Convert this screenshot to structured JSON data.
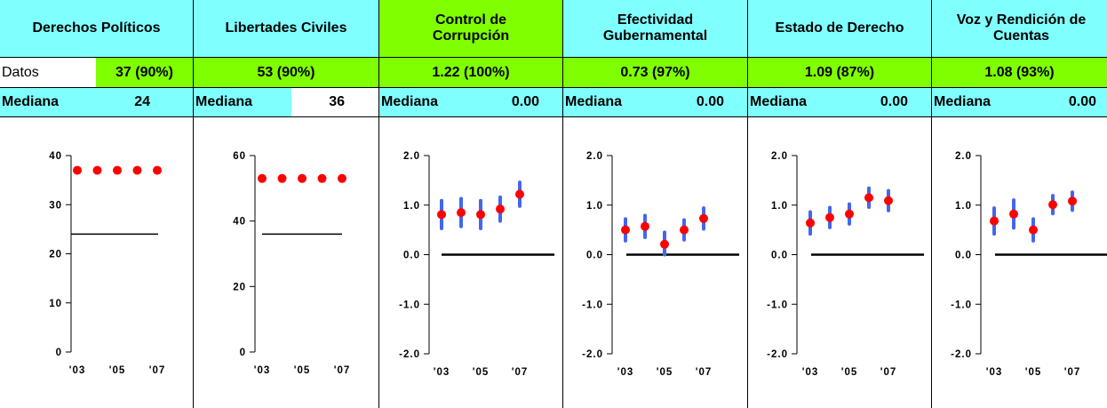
{
  "colors": {
    "header_cyan": "#80ffff",
    "header_green": "#80ff00",
    "point": "#ff0000",
    "interval": "#4466ee"
  },
  "x_ticks": [
    "'03",
    "'05",
    "'07"
  ],
  "panels": [
    {
      "title": "Derechos Políticos",
      "header_color": "cyan",
      "data_label": "Datos",
      "data_value": "37 (90%)",
      "median_label": "Mediana",
      "median_value": "24"
    },
    {
      "title": "Libertades Civiles",
      "header_color": "cyan",
      "data_label": "",
      "data_value": "53 (90%)",
      "median_label": "Mediana",
      "median_value": "36"
    },
    {
      "title": "Control de Corrupción",
      "header_color": "green",
      "data_label": "",
      "data_value": "1.22 (100%)",
      "median_label": "Mediana",
      "median_value": "0.00"
    },
    {
      "title": "Efectividad Gubernamental",
      "header_color": "cyan",
      "data_label": "",
      "data_value": "0.73 (97%)",
      "median_label": "Mediana",
      "median_value": "0.00"
    },
    {
      "title": "Estado de Derecho",
      "header_color": "cyan",
      "data_label": "",
      "data_value": "1.09 (87%)",
      "median_label": "Mediana",
      "median_value": "0.00"
    },
    {
      "title": "Voz y Rendición de Cuentas",
      "header_color": "cyan",
      "data_label": "",
      "data_value": "1.08 (93%)",
      "median_label": "Mediana",
      "median_value": "0.00"
    }
  ],
  "chart_data": [
    {
      "type": "scatter",
      "title": "Derechos Políticos",
      "ylim": [
        0,
        40
      ],
      "yticks": [
        "0",
        "10",
        "20",
        "30",
        "40"
      ],
      "x": [
        2003,
        2004,
        2005,
        2006,
        2007
      ],
      "x_tick_labels": [
        "'03",
        "'05",
        "'07"
      ],
      "values": [
        37,
        37,
        37,
        37,
        37
      ],
      "median": 24
    },
    {
      "type": "scatter",
      "title": "Libertades Civiles",
      "ylim": [
        0,
        60
      ],
      "yticks": [
        "0",
        "20",
        "40",
        "60"
      ],
      "x": [
        2003,
        2004,
        2005,
        2006,
        2007
      ],
      "x_tick_labels": [
        "'03",
        "'05",
        "'07"
      ],
      "values": [
        53,
        53,
        53,
        53,
        53
      ],
      "median": 36
    },
    {
      "type": "scatter",
      "title": "Control de Corrupción",
      "ylim": [
        -2,
        2
      ],
      "yticks": [
        "-2.0",
        "-1.0",
        "0.0",
        "1.0",
        "2.0"
      ],
      "x": [
        2003,
        2004,
        2005,
        2006,
        2007
      ],
      "x_tick_labels": [
        "'03",
        "'05",
        "'07"
      ],
      "values": [
        0.81,
        0.85,
        0.81,
        0.92,
        1.22
      ],
      "intervals": [
        [
          0.53,
          1.09
        ],
        [
          0.57,
          1.13
        ],
        [
          0.53,
          1.09
        ],
        [
          0.68,
          1.16
        ],
        [
          0.98,
          1.46
        ]
      ],
      "median": 0.0
    },
    {
      "type": "scatter",
      "title": "Efectividad Gubernamental",
      "ylim": [
        -2,
        2
      ],
      "yticks": [
        "-2.0",
        "-1.0",
        "0.0",
        "1.0",
        "2.0"
      ],
      "x": [
        2003,
        2004,
        2005,
        2006,
        2007
      ],
      "x_tick_labels": [
        "'03",
        "'05",
        "'07"
      ],
      "values": [
        0.5,
        0.57,
        0.21,
        0.5,
        0.73
      ],
      "intervals": [
        [
          0.28,
          0.72
        ],
        [
          0.35,
          0.79
        ],
        [
          0.0,
          0.45
        ],
        [
          0.3,
          0.7
        ],
        [
          0.52,
          0.94
        ]
      ],
      "median": 0.0
    },
    {
      "type": "scatter",
      "title": "Estado de Derecho",
      "ylim": [
        -2,
        2
      ],
      "yticks": [
        "-2.0",
        "-1.0",
        "0.0",
        "1.0",
        "2.0"
      ],
      "x": [
        2003,
        2004,
        2005,
        2006,
        2007
      ],
      "x_tick_labels": [
        "'03",
        "'05",
        "'07"
      ],
      "values": [
        0.64,
        0.75,
        0.82,
        1.15,
        1.09
      ],
      "intervals": [
        [
          0.42,
          0.86
        ],
        [
          0.55,
          0.95
        ],
        [
          0.62,
          1.02
        ],
        [
          0.96,
          1.34
        ],
        [
          0.89,
          1.29
        ]
      ],
      "median": 0.0
    },
    {
      "type": "scatter",
      "title": "Voz y Rendición de Cuentas",
      "ylim": [
        -2,
        2
      ],
      "yticks": [
        "-2.0",
        "-1.0",
        "0.0",
        "1.0",
        "2.0"
      ],
      "x": [
        2003,
        2004,
        2005,
        2006,
        2007
      ],
      "x_tick_labels": [
        "'03",
        "'05",
        "'07"
      ],
      "values": [
        0.68,
        0.82,
        0.5,
        1.01,
        1.08
      ],
      "intervals": [
        [
          0.42,
          0.94
        ],
        [
          0.54,
          1.1
        ],
        [
          0.28,
          0.72
        ],
        [
          0.83,
          1.19
        ],
        [
          0.9,
          1.26
        ]
      ],
      "median": 0.0
    }
  ]
}
